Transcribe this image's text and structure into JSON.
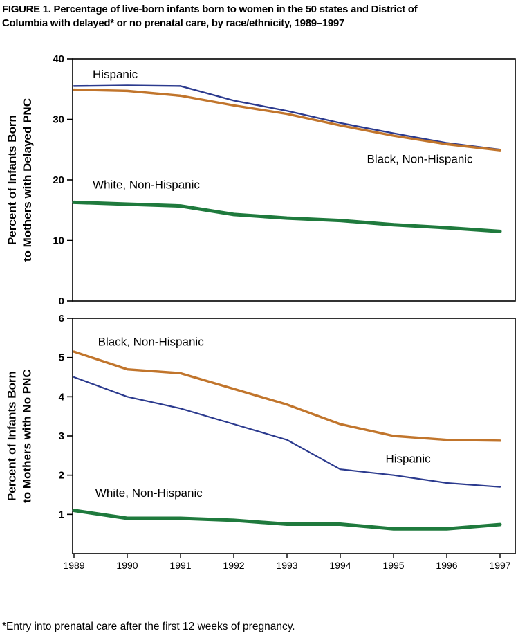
{
  "figure": {
    "title_line1": "FIGURE 1. Percentage of live-born infants born to women in the 50 states and District of",
    "title_line2": "Columbia with delayed* or no prenatal care, by race/ethnicity, 1989–1997",
    "footnote": "*Entry into prenatal care after the first 12 weeks of pregnancy."
  },
  "colors": {
    "hispanic": "#2b3a8e",
    "black_non_hispanic": "#c1752c",
    "white_non_hispanic": "#1f7a3d"
  },
  "chart_data": [
    {
      "type": "line",
      "title": "",
      "ylabel_line1": "Percent of Infants Born",
      "ylabel_line2": "to Mothers with Delayed PNC",
      "xlabel": "",
      "x": [
        1989,
        1990,
        1991,
        1992,
        1993,
        1994,
        1995,
        1996,
        1997
      ],
      "ylim": [
        0,
        40
      ],
      "yticks": [
        0,
        10,
        20,
        30,
        40
      ],
      "grid": false,
      "legend": "inline-annotations",
      "show_x_labels": false,
      "series": [
        {
          "name": "Hispanic",
          "color": "#2b3a8e",
          "thickness": 2.4,
          "values": [
            35.5,
            35.6,
            35.5,
            33.1,
            31.4,
            29.4,
            27.7,
            26.1,
            25.0
          ]
        },
        {
          "name": "Black, Non-Hispanic",
          "color": "#c1752c",
          "thickness": 3.4,
          "values": [
            34.9,
            34.7,
            33.9,
            32.3,
            30.9,
            29.0,
            27.3,
            25.9,
            24.9
          ]
        },
        {
          "name": "White, Non-Hispanic",
          "color": "#1f7a3d",
          "thickness": 5,
          "values": [
            16.3,
            16.0,
            15.7,
            14.3,
            13.7,
            13.3,
            12.6,
            12.1,
            11.5
          ]
        }
      ],
      "annotations": [
        {
          "text": "Hispanic",
          "x": 1989.35,
          "y": 36.8
        },
        {
          "text": "Black, Non-Hispanic",
          "x": 1994.5,
          "y": 22.8
        },
        {
          "text": "White, Non-Hispanic",
          "x": 1989.35,
          "y": 18.6
        }
      ]
    },
    {
      "type": "line",
      "title": "",
      "ylabel_line1": "Percent of Infants Born",
      "ylabel_line2": "to Mothers with No PNC",
      "xlabel": "",
      "x": [
        1989,
        1990,
        1991,
        1992,
        1993,
        1994,
        1995,
        1996,
        1997
      ],
      "ylim": [
        0,
        6
      ],
      "yticks": [
        1,
        2,
        3,
        4,
        5,
        6
      ],
      "grid": false,
      "legend": "inline-annotations",
      "show_x_labels": true,
      "series": [
        {
          "name": "Black, Non-Hispanic",
          "color": "#c1752c",
          "thickness": 3.4,
          "values": [
            5.15,
            4.7,
            4.6,
            4.2,
            3.8,
            3.3,
            3.0,
            2.9,
            2.88
          ]
        },
        {
          "name": "Hispanic",
          "color": "#2b3a8e",
          "thickness": 2.2,
          "values": [
            4.5,
            4.0,
            3.7,
            3.3,
            2.9,
            2.15,
            2.0,
            1.8,
            1.7
          ]
        },
        {
          "name": "White, Non-Hispanic",
          "color": "#1f7a3d",
          "thickness": 5,
          "values": [
            1.1,
            0.9,
            0.9,
            0.85,
            0.75,
            0.75,
            0.63,
            0.63,
            0.74
          ]
        }
      ],
      "annotations": [
        {
          "text": "Black, Non-Hispanic",
          "x": 1989.45,
          "y": 5.3
        },
        {
          "text": "Hispanic",
          "x": 1994.85,
          "y": 2.32
        },
        {
          "text": "White, Non-Hispanic",
          "x": 1989.4,
          "y": 1.45
        }
      ]
    }
  ]
}
